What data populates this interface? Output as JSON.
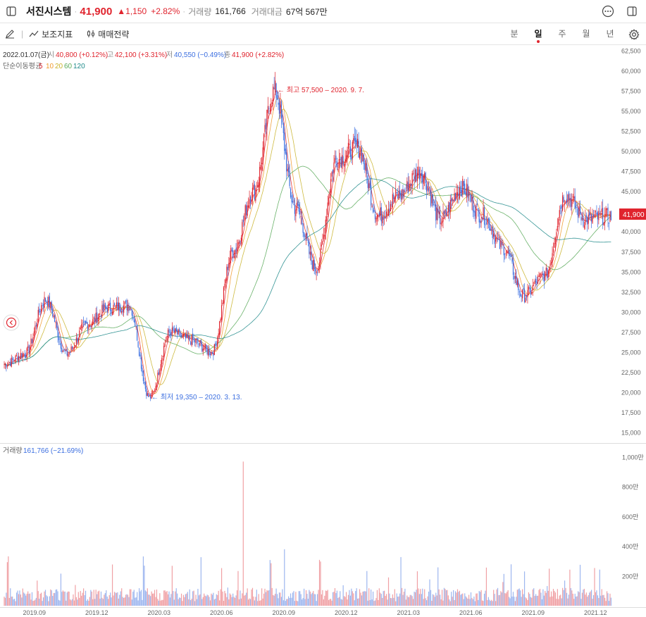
{
  "stock": {
    "name": "서진시스템",
    "price": "41,900",
    "change": "▲1,150",
    "change_pct": "+2.82%",
    "volume_label": "거래량",
    "volume": "161,766",
    "amount_label": "거래대금",
    "amount": "67억 567만"
  },
  "toolbar": {
    "indicator_label": "보조지표",
    "trade_label": "매매전략",
    "periods": [
      "분",
      "일",
      "주",
      "월",
      "년"
    ],
    "active_period": "일"
  },
  "ohlc": {
    "date": "2022.01.07(금)",
    "open_label": "시",
    "open": "40,800 (+0.12%)",
    "high_label": "고",
    "high": "42,100 (+3.31%)",
    "low_label": "저",
    "low": "40,550 (−0.49%)",
    "close_label": "종",
    "close": "41,900 (+2.82%)"
  },
  "ma_legend": {
    "label": "단순이동평균",
    "periods": [
      "5",
      "10",
      "20",
      "60",
      "120"
    ]
  },
  "annotations": {
    "high": "← 최고 57,500 – 2020. 9. 7.",
    "low": "← 최저 19,350 – 2020. 3. 13."
  },
  "current_price_tag": "41,900",
  "volume_panel": {
    "label": "거래량",
    "value": "161,766 (−21.69%)"
  },
  "colors": {
    "up": "#e0242e",
    "down": "#3c6fe0",
    "ma5": "#e0242e",
    "ma10": "#f09a2c",
    "ma20": "#c9b22a",
    "ma60": "#5aaa5a",
    "ma120": "#1f8a8a"
  },
  "chart_data": {
    "type": "candlestick",
    "y_ticks": [
      "62,500",
      "60,000",
      "57,500",
      "55,000",
      "52,500",
      "50,000",
      "47,500",
      "45,000",
      "42,500",
      "40,000",
      "37,500",
      "35,000",
      "32,500",
      "30,000",
      "27,500",
      "25,000",
      "22,500",
      "20,000",
      "17,500",
      "15,000"
    ],
    "ylim": [
      15000,
      62500
    ],
    "x_ticks": [
      "2019.09",
      "2019.12",
      "2020.03",
      "2020.06",
      "2020.09",
      "2020.12",
      "2021.03",
      "2021.06",
      "2021.09",
      "2021.12"
    ],
    "volume_ticks": [
      "1,000만",
      "800만",
      "600만",
      "400만",
      "200만"
    ],
    "volume_ylim": [
      0,
      10000000
    ],
    "price_path": [
      {
        "x": "2019.08",
        "y": 23500
      },
      {
        "x": "2019.09",
        "y": 24800
      },
      {
        "x": "2019.10",
        "y": 31500
      },
      {
        "x": "2019.11",
        "y": 24800
      },
      {
        "x": "2019.12",
        "y": 28500
      },
      {
        "x": "2020.01",
        "y": 30500
      },
      {
        "x": "2020.02",
        "y": 30800
      },
      {
        "x": "2020.03",
        "y": 19350
      },
      {
        "x": "2020.04",
        "y": 27500
      },
      {
        "x": "2020.05",
        "y": 26500
      },
      {
        "x": "2020.06",
        "y": 25000
      },
      {
        "x": "2020.07",
        "y": 37500
      },
      {
        "x": "2020.08",
        "y": 45000
      },
      {
        "x": "2020.09",
        "y": 57500
      },
      {
        "x": "2020.10",
        "y": 43000
      },
      {
        "x": "2020.11",
        "y": 35500
      },
      {
        "x": "2020.12",
        "y": 49000
      },
      {
        "x": "2021.01",
        "y": 50500
      },
      {
        "x": "2021.02",
        "y": 42000
      },
      {
        "x": "2021.03",
        "y": 44500
      },
      {
        "x": "2021.04",
        "y": 47500
      },
      {
        "x": "2021.05",
        "y": 41500
      },
      {
        "x": "2021.06",
        "y": 45500
      },
      {
        "x": "2021.07",
        "y": 42000
      },
      {
        "x": "2021.08",
        "y": 38000
      },
      {
        "x": "2021.09",
        "y": 32000
      },
      {
        "x": "2021.10",
        "y": 34500
      },
      {
        "x": "2021.11",
        "y": 44500
      },
      {
        "x": "2021.12",
        "y": 41500
      },
      {
        "x": "2022.01",
        "y": 41900
      }
    ],
    "volume_spikes": [
      {
        "x": "2020.07",
        "y": 9700000
      },
      {
        "x": "2020.07",
        "y": 5800000
      },
      {
        "x": "2020.09",
        "y": 3800000
      }
    ]
  }
}
